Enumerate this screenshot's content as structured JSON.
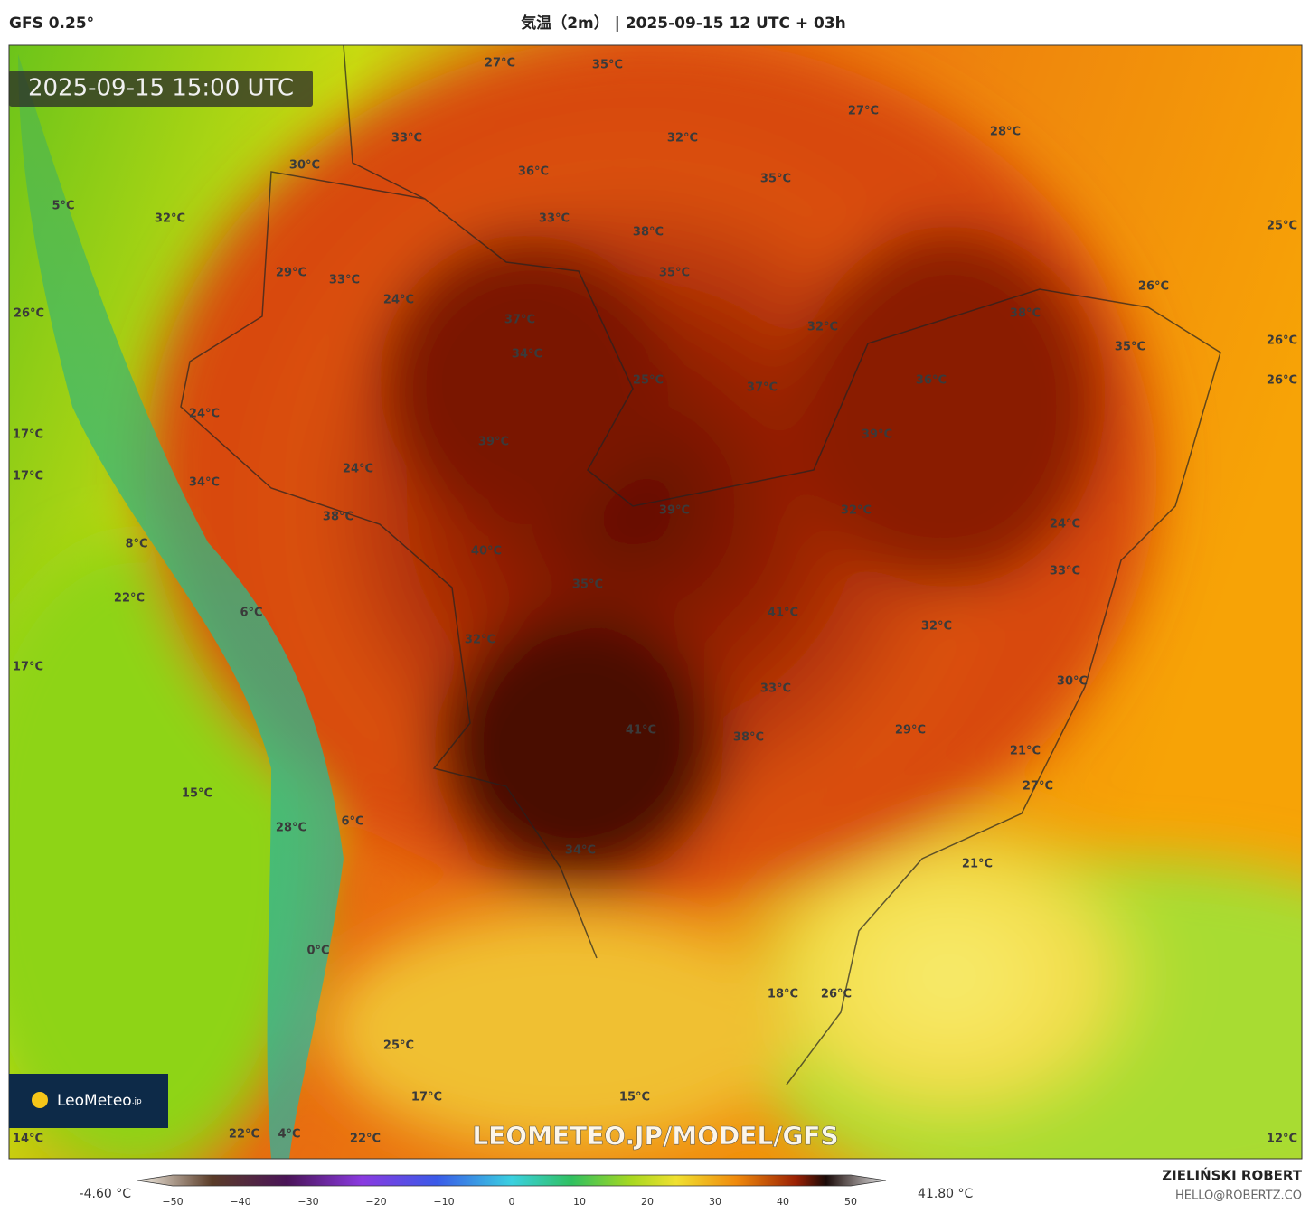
{
  "header": {
    "model": "GFS 0.25°",
    "title": "気温（2m） | 2025-09-15 12 UTC + 03h"
  },
  "timestamp": "2025-09-15 15:00 UTC",
  "logo": {
    "name": "LeoMeteo",
    "suffix": ".jp"
  },
  "watermark": "LEOMETEO.JP/MODEL/GFS",
  "map_labels": [
    "27°C",
    "35°C",
    "27°C",
    "28°C",
    "33°C",
    "32°C",
    "30°C",
    "36°C",
    "35°C",
    "5°C",
    "32°C",
    "33°C",
    "38°C",
    "25°C",
    "29°C",
    "33°C",
    "35°C",
    "24°C",
    "26°C",
    "26°C",
    "37°C",
    "32°C",
    "38°C",
    "35°C",
    "26°C",
    "34°C",
    "25°C",
    "37°C",
    "36°C",
    "26°C",
    "24°C",
    "17°C",
    "39°C",
    "39°C",
    "24°C",
    "17°C",
    "34°C",
    "38°C",
    "39°C",
    "32°C",
    "24°C",
    "8°C",
    "40°C",
    "33°C",
    "35°C",
    "22°C",
    "6°C",
    "41°C",
    "32°C",
    "32°C",
    "17°C",
    "30°C",
    "33°C",
    "41°C",
    "38°C",
    "29°C",
    "21°C",
    "27°C",
    "15°C",
    "6°C",
    "28°C",
    "34°C",
    "21°C",
    "0°C",
    "18°C",
    "26°C",
    "25°C",
    "17°C",
    "15°C",
    "14°C",
    "22°C",
    "4°C",
    "22°C",
    "12°C"
  ],
  "colorbar": {
    "min": "-4.60 °C",
    "max": "41.80 °C",
    "ticks": [
      "−50",
      "−40",
      "−30",
      "−20",
      "−10",
      "0",
      "10",
      "20",
      "30",
      "40",
      "50"
    ]
  },
  "credits": {
    "author": "ZIELIŃSKI ROBERT",
    "contact": "HELLO@ROBERTZ.CO"
  }
}
